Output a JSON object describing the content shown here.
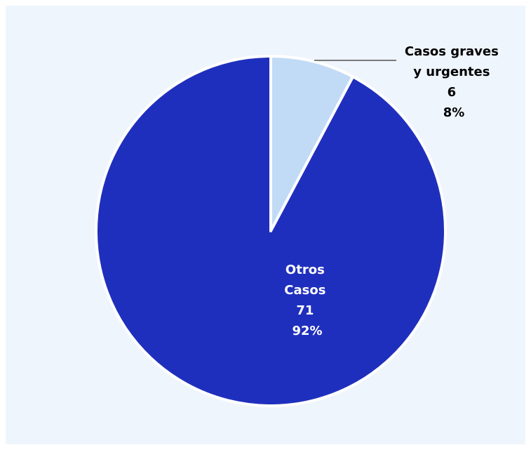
{
  "chart_data": {
    "type": "pie",
    "title": "",
    "slices": [
      {
        "label_lines": [
          "Casos graves",
          "y urgentes"
        ],
        "value": 6,
        "value_label": "6",
        "percent_label": "8%",
        "color": "#c1dbf6"
      },
      {
        "label_lines": [
          "Otros",
          "Casos"
        ],
        "value": 71,
        "value_label": "71",
        "percent_label": "92%",
        "color": "#1f2fbd"
      }
    ],
    "background_color": "#eff5fc",
    "slice_border_color": "#ffffff"
  }
}
